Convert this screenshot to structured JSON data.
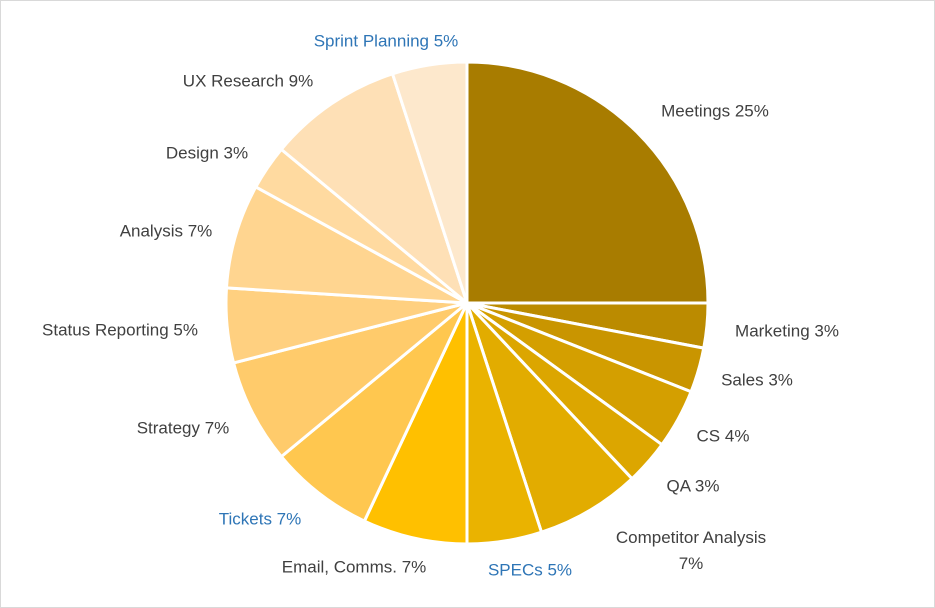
{
  "chart_data": {
    "type": "pie",
    "title": "",
    "start_angle_deg": 0,
    "direction": "clockwise",
    "slices": [
      {
        "label": "Meetings 25%",
        "name": "Meetings",
        "value": 25,
        "color": "#a87c00",
        "label_color": "#404040"
      },
      {
        "label": "Marketing 3%",
        "name": "Marketing",
        "value": 3,
        "color": "#bb8b00",
        "label_color": "#404040"
      },
      {
        "label": "Sales 3%",
        "name": "Sales",
        "value": 3,
        "color": "#c99500",
        "label_color": "#404040"
      },
      {
        "label": "CS 4%",
        "name": "CS",
        "value": 4,
        "color": "#d49f00",
        "label_color": "#404040"
      },
      {
        "label": "QA 3%",
        "name": "QA",
        "value": 3,
        "color": "#dca600",
        "label_color": "#404040"
      },
      {
        "label": "Competitor Analysis 7%",
        "name": "Competitor Analysis",
        "value": 7,
        "color": "#e2ac00",
        "label_color": "#404040"
      },
      {
        "label": "SPECs 5%",
        "name": "SPECs",
        "value": 5,
        "color": "#eab300",
        "label_color": "#2e75b6"
      },
      {
        "label": "Email, Comms. 7%",
        "name": "Email, Comms.",
        "value": 7,
        "color": "#ffc000",
        "label_color": "#404040"
      },
      {
        "label": "Tickets 7%",
        "name": "Tickets",
        "value": 7,
        "color": "#ffc74f",
        "label_color": "#2e75b6"
      },
      {
        "label": "Strategy 7%",
        "name": "Strategy",
        "value": 7,
        "color": "#ffcb6b",
        "label_color": "#404040"
      },
      {
        "label": "Status Reporting 5%",
        "name": "Status Reporting",
        "value": 5,
        "color": "#ffd080",
        "label_color": "#404040"
      },
      {
        "label": "Analysis 7%",
        "name": "Analysis",
        "value": 7,
        "color": "#ffd590",
        "label_color": "#404040"
      },
      {
        "label": "Design 3%",
        "name": "Design",
        "value": 3,
        "color": "#ffdaa0",
        "label_color": "#404040"
      },
      {
        "label": "UX Research 9%",
        "name": "UX Research",
        "value": 9,
        "color": "#fee0b6",
        "label_color": "#404040"
      },
      {
        "label": "Sprint Planning 5%",
        "name": "Sprint Planning",
        "value": 5,
        "color": "#fde8cc",
        "label_color": "#2e75b6"
      }
    ]
  }
}
